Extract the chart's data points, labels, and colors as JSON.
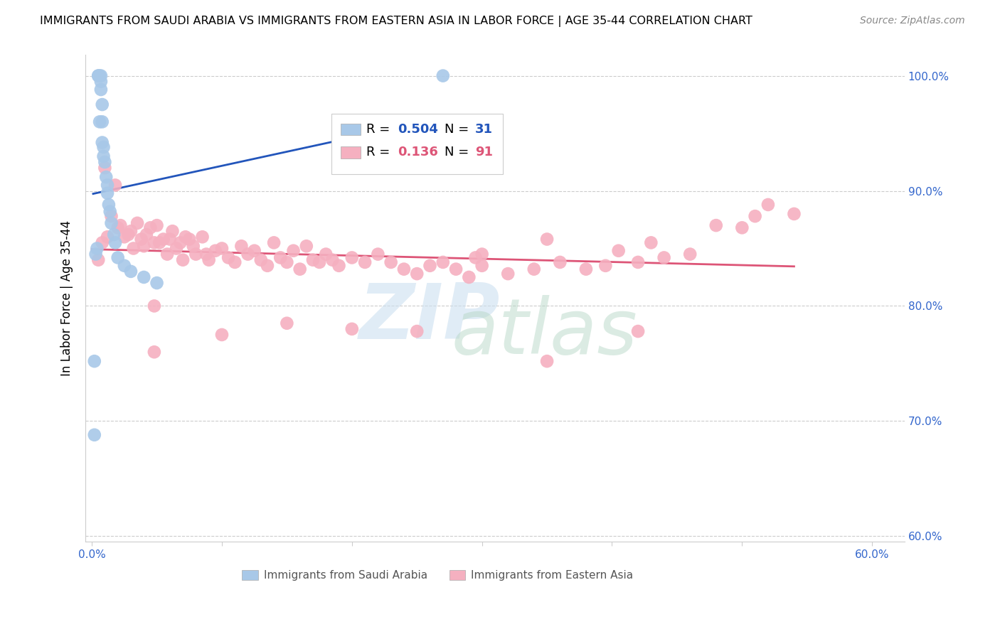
{
  "title": "IMMIGRANTS FROM SAUDI ARABIA VS IMMIGRANTS FROM EASTERN ASIA IN LABOR FORCE | AGE 35-44 CORRELATION CHART",
  "source": "Source: ZipAtlas.com",
  "ylabel": "In Labor Force | Age 35-44",
  "background_color": "#ffffff",
  "saudi_R": 0.504,
  "saudi_N": 31,
  "eastern_R": 0.136,
  "eastern_N": 91,
  "saudi_color": "#a8c8e8",
  "eastern_color": "#f5b0c0",
  "saudi_line_color": "#2255bb",
  "eastern_line_color": "#dd5577",
  "xmin": -0.005,
  "xmax": 0.625,
  "ymin": 0.595,
  "ymax": 1.018,
  "saudi_x": [
    0.002,
    0.003,
    0.004,
    0.005,
    0.005,
    0.006,
    0.006,
    0.007,
    0.007,
    0.007,
    0.008,
    0.008,
    0.008,
    0.009,
    0.009,
    0.01,
    0.011,
    0.012,
    0.012,
    0.013,
    0.014,
    0.015,
    0.017,
    0.018,
    0.02,
    0.025,
    0.03,
    0.04,
    0.05,
    0.27,
    0.002
  ],
  "saudi_y": [
    0.688,
    0.845,
    0.85,
    1.0,
    1.0,
    1.0,
    0.96,
    1.0,
    0.995,
    0.988,
    0.975,
    0.96,
    0.942,
    0.938,
    0.93,
    0.925,
    0.912,
    0.905,
    0.898,
    0.888,
    0.882,
    0.872,
    0.862,
    0.855,
    0.842,
    0.835,
    0.83,
    0.825,
    0.82,
    1.0,
    0.752
  ],
  "eastern_x": [
    0.005,
    0.008,
    0.01,
    0.012,
    0.015,
    0.018,
    0.02,
    0.022,
    0.025,
    0.028,
    0.03,
    0.032,
    0.035,
    0.038,
    0.04,
    0.042,
    0.045,
    0.048,
    0.05,
    0.052,
    0.055,
    0.058,
    0.06,
    0.062,
    0.065,
    0.068,
    0.07,
    0.072,
    0.075,
    0.078,
    0.08,
    0.085,
    0.088,
    0.09,
    0.095,
    0.1,
    0.105,
    0.11,
    0.115,
    0.12,
    0.125,
    0.13,
    0.135,
    0.14,
    0.145,
    0.15,
    0.155,
    0.16,
    0.165,
    0.17,
    0.175,
    0.18,
    0.185,
    0.19,
    0.2,
    0.21,
    0.22,
    0.23,
    0.24,
    0.25,
    0.26,
    0.27,
    0.28,
    0.29,
    0.3,
    0.32,
    0.34,
    0.35,
    0.36,
    0.38,
    0.395,
    0.405,
    0.42,
    0.43,
    0.44,
    0.46,
    0.48,
    0.5,
    0.51,
    0.52,
    0.54,
    0.42,
    0.295,
    0.048,
    0.25,
    0.35,
    0.048,
    0.1,
    0.15,
    0.2,
    0.3
  ],
  "eastern_y": [
    0.84,
    0.855,
    0.92,
    0.86,
    0.878,
    0.905,
    0.868,
    0.87,
    0.86,
    0.862,
    0.865,
    0.85,
    0.872,
    0.858,
    0.852,
    0.862,
    0.868,
    0.855,
    0.87,
    0.855,
    0.858,
    0.845,
    0.858,
    0.865,
    0.85,
    0.855,
    0.84,
    0.86,
    0.858,
    0.852,
    0.845,
    0.86,
    0.845,
    0.84,
    0.848,
    0.85,
    0.842,
    0.838,
    0.852,
    0.845,
    0.848,
    0.84,
    0.835,
    0.855,
    0.842,
    0.838,
    0.848,
    0.832,
    0.852,
    0.84,
    0.838,
    0.845,
    0.84,
    0.835,
    0.842,
    0.838,
    0.845,
    0.838,
    0.832,
    0.828,
    0.835,
    0.838,
    0.832,
    0.825,
    0.845,
    0.828,
    0.832,
    0.858,
    0.838,
    0.832,
    0.835,
    0.848,
    0.838,
    0.855,
    0.842,
    0.845,
    0.87,
    0.868,
    0.878,
    0.888,
    0.88,
    0.778,
    0.842,
    0.8,
    0.778,
    0.752,
    0.76,
    0.775,
    0.785,
    0.78,
    0.835
  ],
  "legend_saudi_text1": "R = ",
  "legend_saudi_val": "0.504",
  "legend_saudi_n_label": "N = ",
  "legend_saudi_n_val": "31",
  "legend_eastern_text1": "R =  ",
  "legend_eastern_val": "0.136",
  "legend_eastern_n_label": "N = ",
  "legend_eastern_n_val": "91",
  "bottom_label_saudi": "Immigrants from Saudi Arabia",
  "bottom_label_eastern": "Immigrants from Eastern Asia"
}
